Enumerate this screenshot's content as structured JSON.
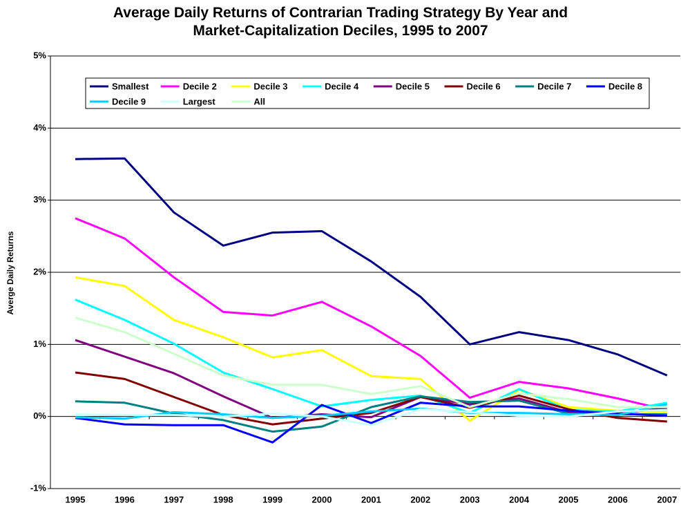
{
  "chart_data": {
    "type": "line",
    "title": "Average Daily Returns of Contrarian Trading Strategy By Year and Market-Capitalization Deciles, 1995 to 2007",
    "y_label": "Averge Daily Returns",
    "categories": [
      "1995",
      "1996",
      "1997",
      "1998",
      "1999",
      "2000",
      "2001",
      "2002",
      "2003",
      "2004",
      "2005",
      "2006",
      "2007"
    ],
    "ylim": [
      -1,
      5
    ],
    "yticks": [
      {
        "value": -1,
        "label": "-1%"
      },
      {
        "value": 0,
        "label": "0%"
      },
      {
        "value": 1,
        "label": "1%"
      },
      {
        "value": 2,
        "label": "2%"
      },
      {
        "value": 3,
        "label": "3%"
      },
      {
        "value": 4,
        "label": "4%"
      },
      {
        "value": 5,
        "label": "5%"
      }
    ],
    "grid": true,
    "legend": "top",
    "series": [
      {
        "name": "Smallest",
        "color": "#000080",
        "values": [
          3.57,
          3.58,
          2.83,
          2.37,
          2.55,
          2.57,
          2.15,
          1.66,
          1.0,
          1.17,
          1.06,
          0.86,
          0.57
        ]
      },
      {
        "name": "Decile 2",
        "color": "#ff00ff",
        "values": [
          2.75,
          2.47,
          1.93,
          1.45,
          1.4,
          1.59,
          1.25,
          0.84,
          0.26,
          0.48,
          0.39,
          0.25,
          0.09
        ]
      },
      {
        "name": "Decile 3",
        "color": "#ffff00",
        "values": [
          1.93,
          1.81,
          1.34,
          1.1,
          0.82,
          0.92,
          0.56,
          0.52,
          -0.06,
          0.37,
          0.13,
          0.08,
          0.06
        ]
      },
      {
        "name": "Decile 4",
        "color": "#00ffff",
        "values": [
          1.62,
          1.34,
          1.01,
          0.61,
          0.38,
          0.14,
          0.23,
          0.29,
          0.05,
          0.38,
          0.09,
          0.07,
          0.19
        ]
      },
      {
        "name": "Decile 5",
        "color": "#800080",
        "values": [
          1.06,
          0.83,
          0.6,
          0.28,
          -0.02,
          0.03,
          -0.01,
          0.27,
          0.17,
          0.25,
          0.06,
          0.04,
          0.12
        ]
      },
      {
        "name": "Decile 6",
        "color": "#800000",
        "values": [
          0.61,
          0.52,
          0.27,
          0.02,
          -0.11,
          -0.03,
          0.05,
          0.27,
          0.12,
          0.29,
          0.1,
          -0.02,
          -0.07
        ]
      },
      {
        "name": "Decile 7",
        "color": "#008080",
        "values": [
          0.21,
          0.19,
          0.04,
          -0.05,
          -0.21,
          -0.14,
          0.13,
          0.28,
          0.2,
          0.22,
          0.04,
          0.03,
          0.03
        ]
      },
      {
        "name": "Decile 8",
        "color": "#0000ff",
        "values": [
          -0.02,
          -0.11,
          -0.12,
          -0.12,
          -0.36,
          0.16,
          -0.09,
          0.19,
          0.14,
          0.14,
          0.08,
          0.04,
          0.01
        ]
      },
      {
        "name": "Decile 9",
        "color": "#00ccff",
        "values": [
          -0.01,
          -0.03,
          0.06,
          0.03,
          -0.02,
          0.01,
          0.07,
          0.11,
          0.05,
          0.05,
          0.03,
          0.02,
          0.17
        ]
      },
      {
        "name": "Largest",
        "color": "#ccffff",
        "values": [
          0.03,
          0.02,
          0.02,
          0.0,
          0.04,
          0.0,
          -0.12,
          0.1,
          0.06,
          0.01,
          0.0,
          0.07,
          0.09
        ]
      },
      {
        "name": "All",
        "color": "#ccffcc",
        "values": [
          1.37,
          1.17,
          0.87,
          0.57,
          0.44,
          0.44,
          0.31,
          0.42,
          0.13,
          0.32,
          0.24,
          0.13,
          0.13
        ]
      }
    ]
  }
}
